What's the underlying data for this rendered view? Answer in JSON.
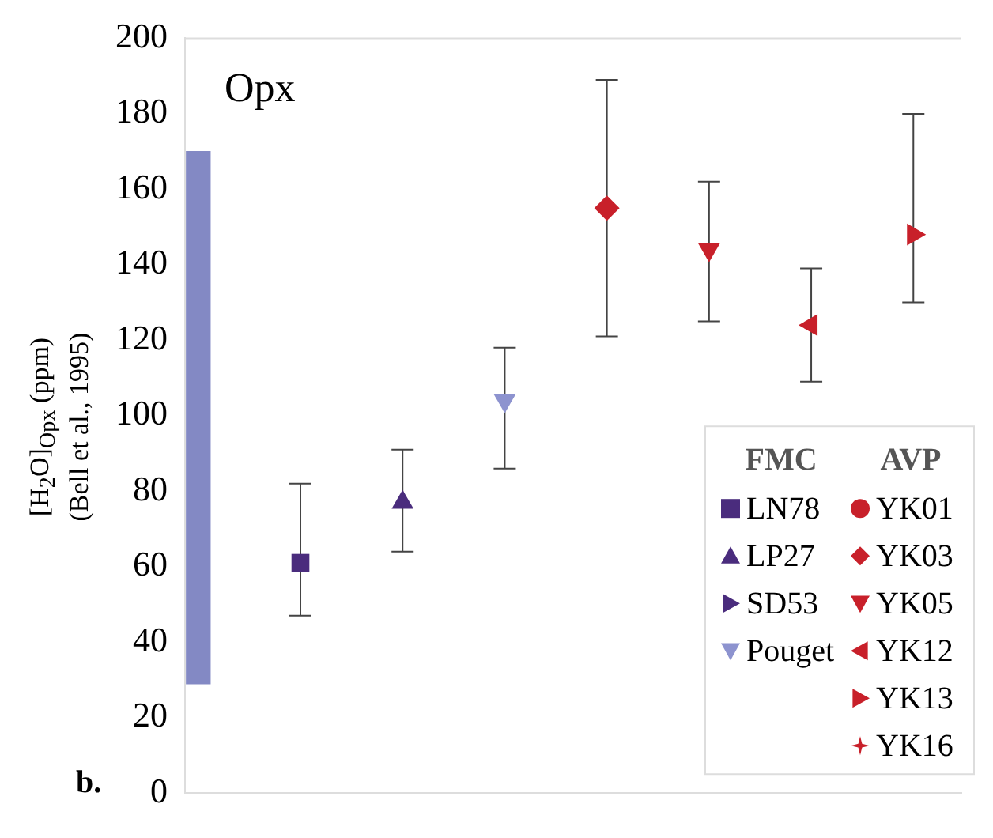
{
  "chart_data": {
    "type": "scatter",
    "title": "Opx",
    "ylabel": "[H$_{2}$O]$_{Opx}$ (ppm)\n(Bell et al., 1995)",
    "annotations": [
      "b.",
      "FMC",
      "AVP"
    ],
    "categories": [
      null,
      null,
      null,
      null,
      null,
      null,
      null,
      null
    ],
    "ylim": [
      0,
      200
    ],
    "yticks": [
      0,
      20,
      40,
      60,
      80,
      100,
      120,
      140,
      160,
      180,
      200
    ],
    "grid": false,
    "legend": "bottom right",
    "series": [
      {
        "type": "bar",
        "color": "#8389c4",
        "values": [
          141,
          null,
          null,
          null,
          null,
          null,
          null,
          null
        ],
        "base": [
          29,
          null,
          null,
          null,
          null,
          null,
          null,
          null
        ]
      },
      {
        "name": "LN78",
        "color": "#4a2c7d",
        "marker": "square",
        "values": [
          null,
          61,
          null,
          null,
          null,
          null,
          null,
          null
        ],
        "errors": [
          null,
          [
            47,
            82
          ],
          null,
          null,
          null,
          null,
          null,
          null
        ]
      },
      {
        "name": "LP27",
        "color": "#4a2c7d",
        "marker": "triangle",
        "values": [
          null,
          null,
          77,
          null,
          null,
          null,
          null,
          null
        ],
        "errors": [
          null,
          null,
          [
            64,
            91
          ],
          null,
          null,
          null,
          null,
          null
        ]
      },
      {
        "name": "SD53",
        "color": "#4a2c7d",
        "marker": "triangle",
        "values": [
          null,
          null,
          null,
          null,
          null,
          null,
          null,
          null
        ]
      },
      {
        "name": "Pouget",
        "color": "#8d93cf",
        "marker": "triangle",
        "values": [
          null,
          null,
          null,
          104,
          null,
          null,
          null,
          null
        ],
        "errors": [
          null,
          null,
          null,
          [
            86,
            118
          ],
          null,
          null,
          null,
          null
        ]
      },
      {
        "name": "YK01",
        "color": "#c8202a",
        "marker": "circle",
        "values": [
          null,
          null,
          null,
          null,
          null,
          null,
          null,
          null
        ]
      },
      {
        "name": "YK03",
        "color": "#c8202a",
        "marker": "diamond",
        "values": [
          null,
          null,
          null,
          null,
          155,
          null,
          null,
          null
        ],
        "errors": [
          null,
          null,
          null,
          null,
          [
            121,
            189
          ],
          null,
          null,
          null
        ]
      },
      {
        "name": "YK05",
        "color": "#c8202a",
        "marker": "triangle",
        "values": [
          null,
          null,
          null,
          null,
          null,
          144,
          null,
          null
        ],
        "errors": [
          null,
          null,
          null,
          null,
          null,
          [
            125,
            162
          ],
          null,
          null
        ]
      },
      {
        "name": "YK12",
        "color": "#c8202a",
        "marker": "triangle",
        "values": [
          null,
          null,
          null,
          null,
          null,
          null,
          124,
          null
        ],
        "errors": [
          null,
          null,
          null,
          null,
          null,
          null,
          [
            109,
            139
          ],
          null
        ]
      },
      {
        "name": "YK13",
        "color": "#c8202a",
        "marker": "triangle",
        "values": [
          null,
          null,
          null,
          null,
          null,
          null,
          null,
          148
        ],
        "errors": [
          null,
          null,
          null,
          null,
          null,
          null,
          null,
          [
            130,
            180
          ]
        ]
      },
      {
        "name": "YK16",
        "color": "#c8202a",
        "marker": "star",
        "values": [
          null,
          null,
          null,
          null,
          null,
          null,
          null,
          null
        ]
      }
    ]
  }
}
